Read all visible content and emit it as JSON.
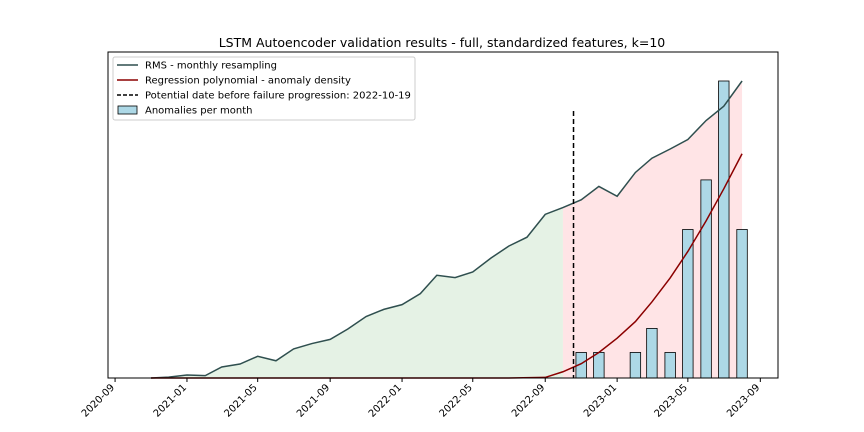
{
  "chart_data": {
    "type": "line",
    "title": "LSTM Autoencoder validation results - full, standardized features, k=10",
    "x_ticks": [
      "2020-09",
      "2021-01",
      "2021-05",
      "2021-09",
      "2022-01",
      "2022-05",
      "2022-09",
      "2023-01",
      "2023-05",
      "2023-09"
    ],
    "xlim": [
      "2020-08-20",
      "2023-10-01"
    ],
    "ylim": [
      0,
      1
    ],
    "grid": false,
    "legend_position": "upper-left",
    "failure_date": "2022-10-19",
    "rms_split_date": "2022-10-01",
    "series": [
      {
        "name": "RMS - monthly resampling",
        "kind": "line",
        "color": "#2f4f4f",
        "x": [
          "2020-11-01",
          "2020-12-01",
          "2021-01-01",
          "2021-02-01",
          "2021-03-01",
          "2021-04-01",
          "2021-05-01",
          "2021-06-01",
          "2021-07-01",
          "2021-08-01",
          "2021-09-01",
          "2021-10-01",
          "2021-11-01",
          "2021-12-01",
          "2022-01-01",
          "2022-02-01",
          "2022-03-01",
          "2022-04-01",
          "2022-05-01",
          "2022-06-01",
          "2022-07-01",
          "2022-08-01",
          "2022-09-01",
          "2022-10-01",
          "2022-11-01",
          "2022-12-01",
          "2023-01-01",
          "2023-02-01",
          "2023-03-01",
          "2023-04-01",
          "2023-05-01",
          "2023-06-01",
          "2023-07-01",
          "2023-08-01"
        ],
        "y": [
          0.0,
          0.003,
          0.01,
          0.008,
          0.037,
          0.047,
          0.073,
          0.058,
          0.098,
          0.116,
          0.13,
          0.165,
          0.207,
          0.231,
          0.247,
          0.284,
          0.346,
          0.338,
          0.357,
          0.404,
          0.444,
          0.474,
          0.551,
          0.574,
          0.6,
          0.645,
          0.612,
          0.692,
          0.74,
          0.771,
          0.803,
          0.867,
          0.915,
          1.0
        ]
      },
      {
        "name": "Regression polynomial - anomaly density",
        "kind": "line",
        "color": "#8b0000",
        "x": [
          "2020-11-01",
          "2021-03-01",
          "2021-07-01",
          "2021-11-01",
          "2022-03-01",
          "2022-07-01",
          "2022-09-01",
          "2022-10-01",
          "2022-11-01",
          "2022-12-01",
          "2023-01-01",
          "2023-02-01",
          "2023-03-01",
          "2023-04-01",
          "2023-05-01",
          "2023-06-01",
          "2023-07-01",
          "2023-08-01"
        ],
        "y": [
          0,
          0,
          0,
          0,
          0,
          0,
          0.002,
          0.021,
          0.048,
          0.086,
          0.134,
          0.19,
          0.256,
          0.337,
          0.426,
          0.529,
          0.637,
          0.755
        ]
      },
      {
        "name": "Anomalies per month",
        "kind": "bar",
        "color": "#add8e6",
        "x": [
          "2022-11-01",
          "2022-12-01",
          "2023-02-01",
          "2023-03-01",
          "2023-04-01",
          "2023-05-01",
          "2023-06-01",
          "2023-07-01",
          "2023-08-01"
        ],
        "y": [
          0.086,
          0.086,
          0.086,
          0.167,
          0.086,
          0.5,
          0.667,
          1.0,
          0.5
        ]
      }
    ],
    "legend": [
      {
        "label": "RMS - monthly resampling",
        "style": "line",
        "color": "#2f4f4f"
      },
      {
        "label": "Regression polynomial - anomaly density",
        "style": "line",
        "color": "#8b0000"
      },
      {
        "label": "Potential date before failure progression: 2022-10-19",
        "style": "dashed",
        "color": "#000000"
      },
      {
        "label": "Anomalies per month",
        "style": "bar",
        "color": "#add8e6"
      }
    ],
    "colors": {
      "fill_before": "#e5f2e5",
      "fill_after": "#ffe4e6"
    }
  }
}
